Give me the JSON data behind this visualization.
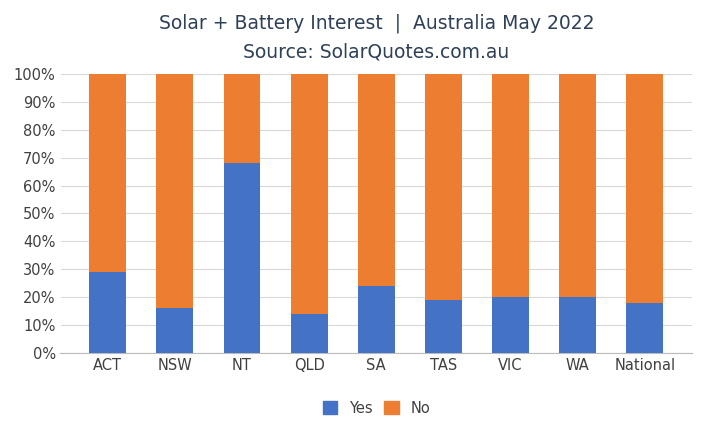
{
  "title_line1": "Solar + Battery Interest  |  Australia May 2022",
  "title_line2": "Source: SolarQuotes.com.au",
  "categories": [
    "ACT",
    "NSW",
    "NT",
    "QLD",
    "SA",
    "TAS",
    "VIC",
    "WA",
    "National"
  ],
  "yes_values": [
    29,
    16,
    68,
    14,
    24,
    19,
    20,
    20,
    18
  ],
  "no_values": [
    71,
    84,
    32,
    86,
    76,
    81,
    80,
    80,
    82
  ],
  "yes_color": "#4472C4",
  "no_color": "#ED7D31",
  "background_color": "#FFFFFF",
  "title_color": "#2E4057",
  "ytick_labels": [
    "0%",
    "10%",
    "20%",
    "30%",
    "40%",
    "50%",
    "60%",
    "70%",
    "80%",
    "90%",
    "100%"
  ],
  "ylim": [
    0,
    100
  ],
  "grid_color": "#D9D9D9",
  "bar_width": 0.55,
  "legend_labels": [
    "Yes",
    "No"
  ],
  "title_fontsize": 13.5,
  "subtitle_fontsize": 13.5,
  "tick_fontsize": 10.5,
  "legend_fontsize": 10.5
}
